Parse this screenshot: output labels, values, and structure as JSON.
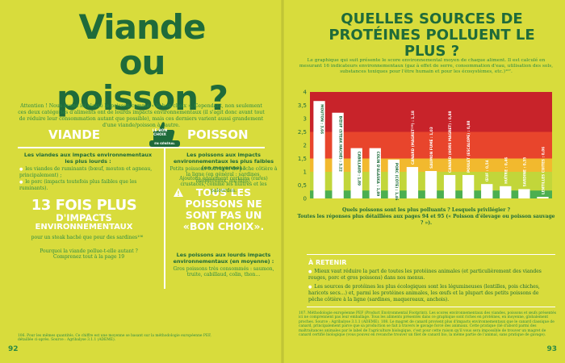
{
  "left": {
    "title": "Viande ou poisson ?",
    "intro": "Attention ! Nous avons ici classé le poisson comme « le bon choix ». Cependant, non seulement ces deux catégories d'aliments ont de lourds impacts environnementaux (il s'agit donc avant tout de réduire leur consommation autant que possible), mais ces derniers varient aussi grandement d'une viande/poisson à l'autre.",
    "viande_head": "VIANDE",
    "poisson_head": "POISSON",
    "badge_line1": "LE BON CHOIX",
    "badge_line2": "EN GÉNÉRAL",
    "viande_sub": "Les viandes aux impacts environnementaux les plus lourds :",
    "viande_b1": "les viandes de ruminants (bœuf, mouton et agneau, principalement) ;",
    "viande_b2": "le porc (impacts toutefois plus faibles que les ruminants).",
    "stat1": "13 FOIS PLUS",
    "stat2": "D'IMPACTS",
    "stat3": "ENVIRONNEMENTAUX",
    "stat_note": "pour un steak haché que pour des sardines¹⁰⁶",
    "viande_q": "Pourquoi la viande pollue-t-elle autant ? Comprenez tout à la page 19",
    "poisson_sub": "Les poissons aux impacts environnementaux les plus faibles (en moyenne) :",
    "poisson_t1": "Petits poissons sauvages de pêche côtière à la ligne (en général : sardines, maquereaux, anchois).",
    "poisson_t2": "Ajoutons également certains (rares) crustacés, comme les huîtres et les palourdes.",
    "warn": "TOUS LES POISSONS NE SONT PAS UN «BON CHOIX».",
    "poisson_sub2": "Les poissons aux lourds impacts environnementaux (en moyenne) :",
    "poisson_t3": "Gros poissons très consommés : saumon, truite, cabillaud, colin, thon…",
    "footnote": "106. Pour les mêmes quantités. Ce chiffre est une moyenne se basant sur la méthodologie européenne PEF, détaillée ci-après. Source : Agribalyse 3.1.1 (ADEME).",
    "page_num": "92"
  },
  "right": {
    "title": "QUELLES SOURCES DE PROTÉINES POLLUENT LE PLUS ?",
    "intro": "Le graphique qui suit présente le score environnemental moyen de chaque aliment. Il est calculé en mesurant 16 indicateurs environnementaux (gaz à effet de serre, consommation d'eau, utilisation des sols, substances toxiques pour l'être humain et pour les écosystèmes, etc.)¹⁰⁷.",
    "caption1": "Quels poissons sont les plus polluants ? Lesquels privilégier ?",
    "caption2": "Toutes les réponses plus détaillées aux pages 94 et 95 (« Poisson d'élevage ou poisson sauvage ? »).",
    "retenir_head": "À RETENIR",
    "retenir1": "Mieux vaut réduire la part de toutes les protéines animales (et particulièrement des viandes rouges, porc et gros poissons) dans nos menus.",
    "retenir2": "Les sources de protéines les plus écologiques sont les légumineuses (lentilles, pois chiches, haricots secs…) et, parmi les protéines animales, les œufs et la plupart des petits poissons de pêche côtière à la ligne (sardines, maquereaux, anchois).",
    "footnote": "107. Méthodologie européenne PEF (Product Environmental Footprint). Les scores environnementaux des viandes, poissons et œufs présentés ici ne comprennent pas leur emballage. Tous les aliments présentés dans ce graphique sont riches en protéines, en moyenne, globalement proches. Source : Agribalyse 3.1.1 (ADEME). 108. Le magret de canard provient plus d'impacts environnementaux que le canard classique de canard, principalement parce que sa production se fait à travers le gavage forcé des animaux. Cette pratique (lié d'abord parmi des maltraitances animales par le label de l'agriculture biologique, c'est pour cette raison qu'il vous sera impossible de trouver un magret de canard certifié biologique (vous pouvez en revanche trouver un filet de canard bio, la même partie de l'animal, sans pratique de gavage).",
    "page_num": "93"
  },
  "chart_data": {
    "type": "bar",
    "title": "",
    "xlabel": "",
    "ylabel": "",
    "ylim": [
      0,
      4
    ],
    "yticks": [
      "0",
      "0,5",
      "1",
      "1,5",
      "2",
      "2,5",
      "3",
      "3,5",
      "4"
    ],
    "categories": [
      "MOUTON",
      "BŒUF (STEAK HACHÉ)",
      "CABILLAUD",
      "COLIN D'ALASKA",
      "PORC (CÔTE)",
      "CANARD (MAGRET¹⁰⁸)",
      "SAUMON FUMÉ",
      "CANARD (HORS MAGRET)",
      "POULET (ESCALOPE)",
      "ŒUF",
      "HUÎTRE",
      "SARDINE",
      "LENTILLES CUITES"
    ],
    "values": [
      3.66,
      3.22,
      1.89,
      1.89,
      1.46,
      1.18,
      1.03,
      0.88,
      0.88,
      0.54,
      0.46,
      0.35,
      0.06
    ],
    "labels": [
      "MOUTON : 3,66",
      "BŒUF (STEAK HACHÉ) : 3,22",
      "CABILLAUD : 1,89",
      "COLIN D'ALASKA : 1,89",
      "PORC (CÔTE) : 1,46",
      "CANARD (MAGRET¹⁰⁸) : 1,18",
      "SAUMON FUMÉ : 1,03",
      "CANARD (HORS MAGRET) : 0,88",
      "POULET (ESCALOPE) : 0,88",
      "ŒUF : 0,54",
      "HUÎTRE : 0,46",
      "SARDINE : 0,35",
      "LENTILLES CUITES : 0,06"
    ],
    "bands": [
      {
        "from": 0,
        "to": 0.3,
        "color": "#4caf50"
      },
      {
        "from": 0.3,
        "to": 1.0,
        "color": "#c2d63a"
      },
      {
        "from": 1.0,
        "to": 1.5,
        "color": "#f2b92e"
      },
      {
        "from": 1.5,
        "to": 2.5,
        "color": "#e8452c"
      },
      {
        "from": 2.5,
        "to": 4.0,
        "color": "#c8232a"
      }
    ],
    "bar_color": "#ffffff",
    "grid": false
  }
}
